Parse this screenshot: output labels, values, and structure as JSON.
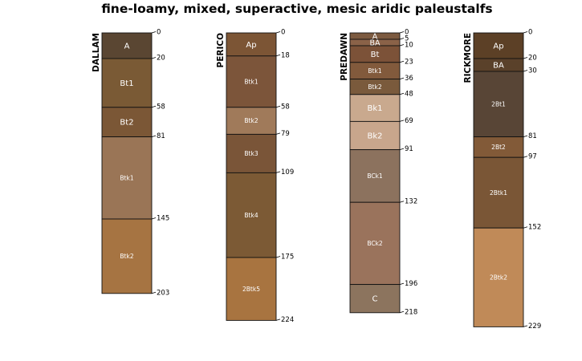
{
  "title": "fine-loamy, mixed, superactive, mesic aridic paleustalfs",
  "profiles": [
    {
      "name": "DALLAM",
      "bottom": 203,
      "horizons": [
        {
          "name": "A",
          "top": 0,
          "bottom": 20,
          "color": "#5a4632"
        },
        {
          "name": "Bt1",
          "top": 20,
          "bottom": 58,
          "color": "#7a5a35"
        },
        {
          "name": "Bt2",
          "top": 58,
          "bottom": 81,
          "color": "#7b5736"
        },
        {
          "name": "Btk1",
          "top": 81,
          "bottom": 145,
          "color": "#9a7556"
        },
        {
          "name": "Btk2",
          "top": 145,
          "bottom": 203,
          "color": "#a67442"
        }
      ]
    },
    {
      "name": "PERICO",
      "bottom": 224,
      "horizons": [
        {
          "name": "Ap",
          "top": 0,
          "bottom": 18,
          "color": "#7c5535"
        },
        {
          "name": "Btk1",
          "top": 18,
          "bottom": 58,
          "color": "#7c553a"
        },
        {
          "name": "Btk2",
          "top": 58,
          "bottom": 79,
          "color": "#a07a5a"
        },
        {
          "name": "Btk3",
          "top": 79,
          "bottom": 109,
          "color": "#7a5538"
        },
        {
          "name": "Btk4",
          "top": 109,
          "bottom": 175,
          "color": "#7c5a35"
        },
        {
          "name": "2Btk5",
          "top": 175,
          "bottom": 224,
          "color": "#a87440"
        }
      ]
    },
    {
      "name": "PREDAWN",
      "bottom": 218,
      "horizons": [
        {
          "name": "A",
          "top": 0,
          "bottom": 5,
          "color": "#7c5a40"
        },
        {
          "name": "BA",
          "top": 5,
          "bottom": 10,
          "color": "#8a6248"
        },
        {
          "name": "Bt",
          "top": 10,
          "bottom": 23,
          "color": "#7c5238"
        },
        {
          "name": "Btk1",
          "top": 23,
          "bottom": 36,
          "color": "#825a3c"
        },
        {
          "name": "Btk2",
          "top": 36,
          "bottom": 48,
          "color": "#7a5a3c"
        },
        {
          "name": "Bk1",
          "top": 48,
          "bottom": 69,
          "color": "#c9a98e"
        },
        {
          "name": "Bk2",
          "top": 69,
          "bottom": 91,
          "color": "#c8a68c"
        },
        {
          "name": "BCk1",
          "top": 91,
          "bottom": 132,
          "color": "#8c725e"
        },
        {
          "name": "BCk2",
          "top": 132,
          "bottom": 196,
          "color": "#9a735c"
        },
        {
          "name": "C",
          "top": 196,
          "bottom": 218,
          "color": "#8c745e"
        }
      ]
    },
    {
      "name": "RICKMORE",
      "bottom": 229,
      "horizons": [
        {
          "name": "Ap",
          "top": 0,
          "bottom": 20,
          "color": "#5c4026"
        },
        {
          "name": "BA",
          "top": 20,
          "bottom": 30,
          "color": "#5a412a"
        },
        {
          "name": "2Bt1",
          "top": 30,
          "bottom": 81,
          "color": "#584536"
        },
        {
          "name": "2Bt2",
          "top": 81,
          "bottom": 97,
          "color": "#825a38"
        },
        {
          "name": "2Btk1",
          "top": 97,
          "bottom": 152,
          "color": "#7a5636"
        },
        {
          "name": "2Btk2",
          "top": 152,
          "bottom": 229,
          "color": "#c08a58"
        }
      ]
    }
  ],
  "depth_labels": {
    "DALLAM": [
      0,
      20,
      58,
      81,
      145,
      203
    ],
    "PERICO": [
      0,
      18,
      58,
      79,
      109,
      175,
      224
    ],
    "PREDAWN": [
      0,
      5,
      10,
      23,
      36,
      48,
      69,
      91,
      132,
      196,
      218
    ],
    "RICKMORE": [
      0,
      20,
      30,
      81,
      97,
      152,
      229
    ]
  }
}
